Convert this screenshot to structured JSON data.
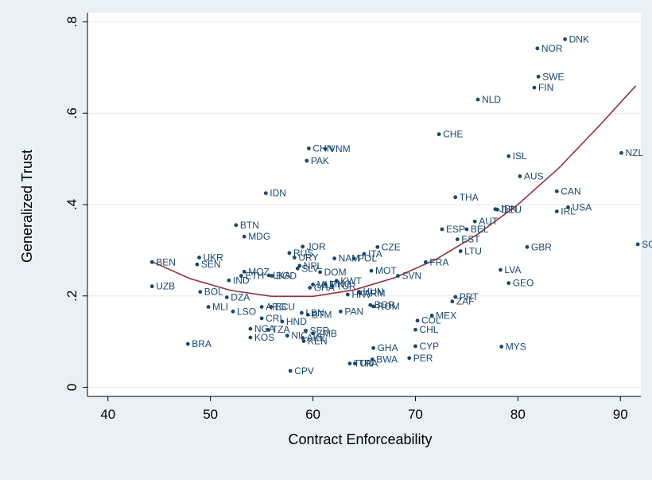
{
  "chart_data": {
    "type": "scatter",
    "title": "",
    "xlabel": "Contract Enforceability",
    "ylabel": "Generalized Trust",
    "xlim": [
      38,
      92
    ],
    "ylim": [
      -0.02,
      0.82
    ],
    "x_ticks": [
      40,
      50,
      60,
      70,
      80,
      90
    ],
    "y_ticks": [
      0,
      0.2,
      0.4,
      0.6,
      0.8
    ],
    "x_tick_labels": [
      "40",
      "50",
      "60",
      "70",
      "80",
      "90"
    ],
    "y_tick_labels": [
      "0",
      ".2",
      ".4",
      ".6",
      ".8"
    ],
    "grid": "horizontal",
    "legend": "none",
    "colors": {
      "background": "#eaf1f6",
      "plot_background": "#ffffff",
      "grid": "#e6edf1",
      "marker": "#1a476f",
      "label": "#1a476f",
      "fit_line": "#90353b",
      "text": "#000000"
    },
    "fit_curve": {
      "type": "quadratic",
      "x": [
        44.2,
        48,
        52,
        56,
        60,
        64,
        68,
        72,
        76,
        80,
        84,
        88,
        91.5
      ],
      "y": [
        0.276,
        0.238,
        0.212,
        0.199,
        0.199,
        0.213,
        0.24,
        0.28,
        0.334,
        0.4,
        0.48,
        0.574,
        0.66
      ]
    },
    "points": [
      {
        "label": "DNK",
        "x": 84.6,
        "y": 0.762
      },
      {
        "label": "NOR",
        "x": 81.9,
        "y": 0.742
      },
      {
        "label": "SWE",
        "x": 82.0,
        "y": 0.68
      },
      {
        "label": "FIN",
        "x": 81.6,
        "y": 0.656
      },
      {
        "label": "NLD",
        "x": 76.1,
        "y": 0.63
      },
      {
        "label": "CHE",
        "x": 72.3,
        "y": 0.554
      },
      {
        "label": "NZL",
        "x": 90.1,
        "y": 0.513
      },
      {
        "label": "ISL",
        "x": 79.1,
        "y": 0.506
      },
      {
        "label": "AUS",
        "x": 80.2,
        "y": 0.462
      },
      {
        "label": "CAN",
        "x": 83.8,
        "y": 0.429
      },
      {
        "label": "THA",
        "x": 73.9,
        "y": 0.416
      },
      {
        "label": "USA",
        "x": 84.9,
        "y": 0.394
      },
      {
        "label": "IRL",
        "x": 83.8,
        "y": 0.385
      },
      {
        "label": "JPN",
        "x": 77.8,
        "y": 0.39
      },
      {
        "label": "DEU",
        "x": 78.0,
        "y": 0.389
      },
      {
        "label": "AUT",
        "x": 75.8,
        "y": 0.363
      },
      {
        "label": "BEL",
        "x": 75.0,
        "y": 0.346
      },
      {
        "label": "ESP",
        "x": 72.6,
        "y": 0.346
      },
      {
        "label": "EST",
        "x": 74.1,
        "y": 0.324
      },
      {
        "label": "SGP",
        "x": 91.7,
        "y": 0.313
      },
      {
        "label": "GBR",
        "x": 80.9,
        "y": 0.307
      },
      {
        "label": "LTU",
        "x": 74.4,
        "y": 0.298
      },
      {
        "label": "FRA",
        "x": 71.0,
        "y": 0.274
      },
      {
        "label": "LVA",
        "x": 78.3,
        "y": 0.257
      },
      {
        "label": "GEO",
        "x": 79.1,
        "y": 0.228
      },
      {
        "label": "PRT",
        "x": 73.9,
        "y": 0.198
      },
      {
        "label": "ZAF",
        "x": 73.6,
        "y": 0.188
      },
      {
        "label": "MEX",
        "x": 71.6,
        "y": 0.157
      },
      {
        "label": "COL",
        "x": 70.2,
        "y": 0.146
      },
      {
        "label": "CHL",
        "x": 70.0,
        "y": 0.126
      },
      {
        "label": "MYS",
        "x": 78.4,
        "y": 0.089
      },
      {
        "label": "CYP",
        "x": 70.0,
        "y": 0.09
      },
      {
        "label": "PER",
        "x": 69.4,
        "y": 0.064
      },
      {
        "label": "CHN",
        "x": 59.6,
        "y": 0.523
      },
      {
        "label": "VNM",
        "x": 61.2,
        "y": 0.522
      },
      {
        "label": "PAK",
        "x": 59.4,
        "y": 0.496
      },
      {
        "label": "IDN",
        "x": 55.4,
        "y": 0.425
      },
      {
        "label": "BTN",
        "x": 52.5,
        "y": 0.355
      },
      {
        "label": "MDG",
        "x": 53.3,
        "y": 0.33
      },
      {
        "label": "JOR",
        "x": 59.0,
        "y": 0.308
      },
      {
        "label": "RUS",
        "x": 57.7,
        "y": 0.294
      },
      {
        "label": "URY",
        "x": 58.2,
        "y": 0.284
      },
      {
        "label": "CZE",
        "x": 66.3,
        "y": 0.307
      },
      {
        "label": "ITA",
        "x": 65.0,
        "y": 0.292
      },
      {
        "label": "NAM",
        "x": 62.1,
        "y": 0.282
      },
      {
        "label": "POL",
        "x": 64.0,
        "y": 0.282
      },
      {
        "label": "NPL",
        "x": 58.7,
        "y": 0.266
      },
      {
        "label": "SLV",
        "x": 58.5,
        "y": 0.26
      },
      {
        "label": "MOT",
        "x": 65.7,
        "y": 0.255
      },
      {
        "label": "DOM",
        "x": 60.7,
        "y": 0.252
      },
      {
        "label": "SVN",
        "x": 68.3,
        "y": 0.244
      },
      {
        "label": "UKR",
        "x": 48.9,
        "y": 0.284
      },
      {
        "label": "SEN",
        "x": 48.7,
        "y": 0.269
      },
      {
        "label": "BEN",
        "x": 44.3,
        "y": 0.274
      },
      {
        "label": "MOZ",
        "x": 53.3,
        "y": 0.253
      },
      {
        "label": "ETH",
        "x": 53.0,
        "y": 0.244
      },
      {
        "label": "LKA",
        "x": 55.7,
        "y": 0.245
      },
      {
        "label": "BGD",
        "x": 56.0,
        "y": 0.244
      },
      {
        "label": "IND",
        "x": 51.8,
        "y": 0.234
      },
      {
        "label": "KWT",
        "x": 62.3,
        "y": 0.233
      },
      {
        "label": "MLT",
        "x": 60.0,
        "y": 0.225
      },
      {
        "label": "MNG",
        "x": 61.2,
        "y": 0.226
      },
      {
        "label": "TUR",
        "x": 61.9,
        "y": 0.221
      },
      {
        "label": "GHA",
        "x": 59.7,
        "y": 0.218
      },
      {
        "label": "UZB",
        "x": 44.3,
        "y": 0.221
      },
      {
        "label": "BOL",
        "x": 49.0,
        "y": 0.209
      },
      {
        "label": "DZA",
        "x": 51.6,
        "y": 0.197
      },
      {
        "label": "HRV",
        "x": 63.4,
        "y": 0.203
      },
      {
        "label": "HUN",
        "x": 64.5,
        "y": 0.209
      },
      {
        "label": "ARM",
        "x": 64.6,
        "y": 0.206
      },
      {
        "label": "MLI",
        "x": 49.8,
        "y": 0.176
      },
      {
        "label": "LSO",
        "x": 52.2,
        "y": 0.166
      },
      {
        "label": "ARG",
        "x": 55.0,
        "y": 0.176
      },
      {
        "label": "ECU",
        "x": 55.9,
        "y": 0.176
      },
      {
        "label": "BGR",
        "x": 65.6,
        "y": 0.18
      },
      {
        "label": "ROM",
        "x": 65.9,
        "y": 0.177
      },
      {
        "label": "LBN",
        "x": 58.9,
        "y": 0.163
      },
      {
        "label": "BTM",
        "x": 59.5,
        "y": 0.159
      },
      {
        "label": "PAN",
        "x": 62.7,
        "y": 0.166
      },
      {
        "label": "BRA",
        "x": 47.8,
        "y": 0.095
      },
      {
        "label": "CRI",
        "x": 55.0,
        "y": 0.151
      },
      {
        "label": "HND",
        "x": 57.0,
        "y": 0.144
      },
      {
        "label": "NGA",
        "x": 53.9,
        "y": 0.128
      },
      {
        "label": "TZA",
        "x": 55.6,
        "y": 0.126
      },
      {
        "label": "SER",
        "x": 59.3,
        "y": 0.124
      },
      {
        "label": "ZMB",
        "x": 60.0,
        "y": 0.118
      },
      {
        "label": "KOS",
        "x": 53.9,
        "y": 0.109
      },
      {
        "label": "NIC",
        "x": 57.5,
        "y": 0.113
      },
      {
        "label": "AKE",
        "x": 59.0,
        "y": 0.108
      },
      {
        "label": "KEN",
        "x": 59.1,
        "y": 0.101
      },
      {
        "label": "GHA",
        "x": 65.9,
        "y": 0.086
      },
      {
        "label": "BWA",
        "x": 65.8,
        "y": 0.061
      },
      {
        "label": "TUN",
        "x": 63.6,
        "y": 0.052
      },
      {
        "label": "TRA",
        "x": 64.1,
        "y": 0.052
      },
      {
        "label": "CPV",
        "x": 57.8,
        "y": 0.036
      }
    ]
  }
}
